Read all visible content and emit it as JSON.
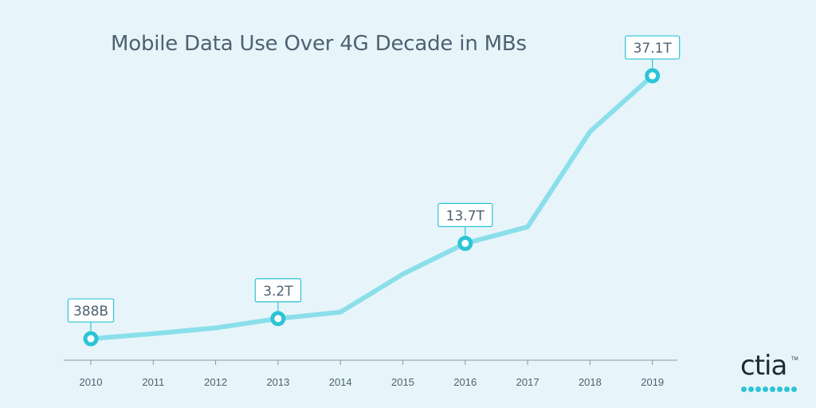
{
  "title": "Mobile Data Use Over 4G Decade in MBs",
  "brand": {
    "wordmark": "ctia",
    "trademark": "TM"
  },
  "colors": {
    "background": "#e7f5fa",
    "line": "#8adfea",
    "marker": "#2cc4d6",
    "axis": "#8a969c",
    "text": "#4f6172"
  },
  "chart_data": {
    "type": "line",
    "title": "Mobile Data Use Over 4G Decade in MBs",
    "xlabel": "",
    "ylabel": "",
    "grid": false,
    "legend": "none",
    "categories": [
      "2010",
      "2011",
      "2012",
      "2013",
      "2014",
      "2015",
      "2016",
      "2017",
      "2018",
      "2019"
    ],
    "series": [
      {
        "values_trillions_mb": [
          0.388,
          1.1,
          1.9,
          3.2,
          4.1,
          9.4,
          13.7,
          16.0,
          29.3,
          37.1
        ]
      }
    ],
    "ylim": [
      -3.5,
      41.0
    ],
    "annotations": [
      {
        "category": "2010",
        "label": "388B"
      },
      {
        "category": "2013",
        "label": "3.2T"
      },
      {
        "category": "2016",
        "label": "13.7T"
      },
      {
        "category": "2019",
        "label": "37.1T"
      }
    ]
  }
}
